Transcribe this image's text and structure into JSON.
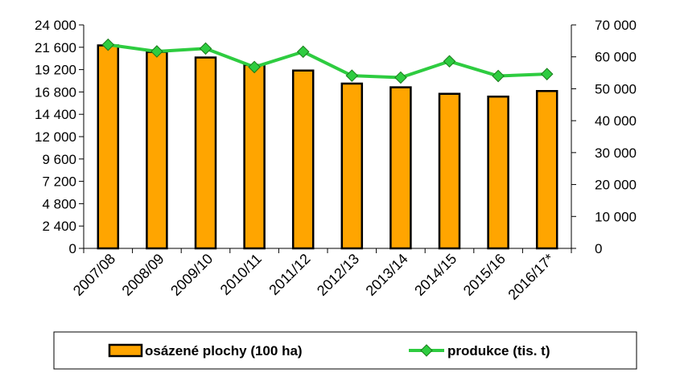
{
  "chart_data": {
    "type": "bar",
    "categories": [
      "2007/08",
      "2008/09",
      "2009/10",
      "2010/11",
      "2011/12",
      "2012/13",
      "2013/14",
      "2014/15",
      "2015/16",
      "2016/17*"
    ],
    "series": [
      {
        "name": "osázené plochy (100 ha)",
        "type": "bar",
        "axis": "left",
        "color": "#FFA500",
        "values": [
          21800,
          21100,
          20500,
          19700,
          19100,
          17700,
          17300,
          16600,
          16300,
          16900
        ]
      },
      {
        "name": "produkce (tis. t)",
        "type": "line",
        "axis": "right",
        "color": "#2ECC40",
        "values": [
          63800,
          61700,
          62600,
          56800,
          61600,
          54100,
          53500,
          58600,
          54000,
          54600
        ]
      }
    ],
    "y_left": {
      "min": 0,
      "max": 24000,
      "ticks": [
        0,
        2400,
        4800,
        7200,
        9600,
        12000,
        14400,
        16800,
        19200,
        21600,
        24000
      ],
      "tick_labels": [
        "0",
        "2 400",
        "4 800",
        "7 200",
        "9 600",
        "12 000",
        "14 400",
        "16 800",
        "19 200",
        "21 600",
        "24 000"
      ]
    },
    "y_right": {
      "min": 0,
      "max": 70000,
      "ticks": [
        0,
        10000,
        20000,
        30000,
        40000,
        50000,
        60000,
        70000
      ],
      "tick_labels": [
        "0",
        "10 000",
        "20 000",
        "30 000",
        "40 000",
        "50 000",
        "60 000",
        "70 000"
      ]
    },
    "grid": false,
    "legend_position": "bottom"
  }
}
